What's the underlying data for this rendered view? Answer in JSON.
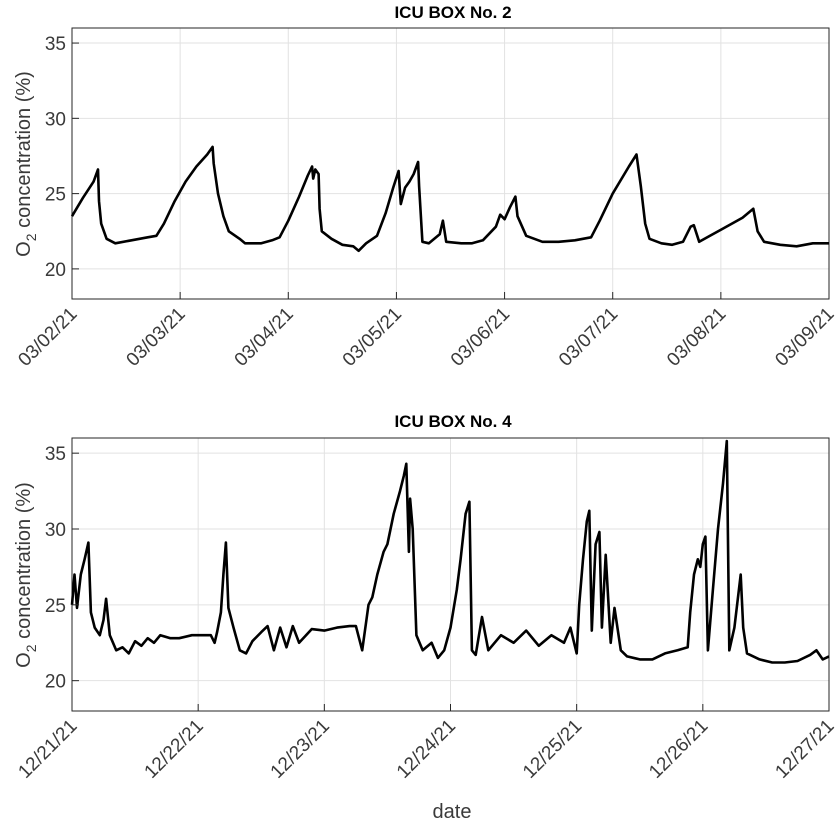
{
  "chart_data": [
    {
      "type": "line",
      "title": "ICU BOX No. 2",
      "ylabel": "O",
      "ylabel_subscript": "2",
      "ylabel_suffix": " concentration (%)",
      "xlabel": "",
      "ylim": [
        18,
        36
      ],
      "yticks": [
        20,
        25,
        30,
        35
      ],
      "xticks": [
        "03/02/21",
        "03/03/21",
        "03/04/21",
        "03/05/21",
        "03/06/21",
        "03/07/21",
        "03/08/21",
        "03/09/21"
      ],
      "x_unit": "days from first tick (03/02/21)",
      "grid": true,
      "series": [
        {
          "color": "#000000",
          "points": [
            [
              0.0,
              23.5
            ],
            [
              0.1,
              24.7
            ],
            [
              0.2,
              25.8
            ],
            [
              0.24,
              26.6
            ],
            [
              0.25,
              24.5
            ],
            [
              0.27,
              23.0
            ],
            [
              0.32,
              22.0
            ],
            [
              0.4,
              21.7
            ],
            [
              0.55,
              21.9
            ],
            [
              0.7,
              22.1
            ],
            [
              0.78,
              22.2
            ],
            [
              0.85,
              23.0
            ],
            [
              0.95,
              24.5
            ],
            [
              1.05,
              25.8
            ],
            [
              1.15,
              26.8
            ],
            [
              1.25,
              27.6
            ],
            [
              1.3,
              28.1
            ],
            [
              1.31,
              27.0
            ],
            [
              1.35,
              25.0
            ],
            [
              1.4,
              23.5
            ],
            [
              1.45,
              22.5
            ],
            [
              1.55,
              22.0
            ],
            [
              1.6,
              21.7
            ],
            [
              1.75,
              21.7
            ],
            [
              1.85,
              21.9
            ],
            [
              1.92,
              22.1
            ],
            [
              2.0,
              23.2
            ],
            [
              2.1,
              24.8
            ],
            [
              2.18,
              26.2
            ],
            [
              2.22,
              26.8
            ],
            [
              2.23,
              26.0
            ],
            [
              2.25,
              26.6
            ],
            [
              2.28,
              26.3
            ],
            [
              2.29,
              24.0
            ],
            [
              2.31,
              22.5
            ],
            [
              2.4,
              22.0
            ],
            [
              2.5,
              21.6
            ],
            [
              2.6,
              21.5
            ],
            [
              2.65,
              21.2
            ],
            [
              2.72,
              21.7
            ],
            [
              2.82,
              22.2
            ],
            [
              2.9,
              23.7
            ],
            [
              2.97,
              25.4
            ],
            [
              3.02,
              26.5
            ],
            [
              3.04,
              24.3
            ],
            [
              3.08,
              25.4
            ],
            [
              3.12,
              25.8
            ],
            [
              3.16,
              26.3
            ],
            [
              3.2,
              27.1
            ],
            [
              3.21,
              25.5
            ],
            [
              3.24,
              21.8
            ],
            [
              3.3,
              21.7
            ],
            [
              3.4,
              22.3
            ],
            [
              3.43,
              23.2
            ],
            [
              3.46,
              21.8
            ],
            [
              3.6,
              21.7
            ],
            [
              3.7,
              21.7
            ],
            [
              3.8,
              21.9
            ],
            [
              3.92,
              22.8
            ],
            [
              3.96,
              23.6
            ],
            [
              4.0,
              23.3
            ],
            [
              4.05,
              24.1
            ],
            [
              4.1,
              24.8
            ],
            [
              4.12,
              23.5
            ],
            [
              4.2,
              22.2
            ],
            [
              4.35,
              21.8
            ],
            [
              4.5,
              21.8
            ],
            [
              4.65,
              21.9
            ],
            [
              4.8,
              22.1
            ],
            [
              4.88,
              23.2
            ],
            [
              5.0,
              25.0
            ],
            [
              5.15,
              26.8
            ],
            [
              5.22,
              27.6
            ],
            [
              5.26,
              25.5
            ],
            [
              5.3,
              23.0
            ],
            [
              5.34,
              22.0
            ],
            [
              5.45,
              21.7
            ],
            [
              5.55,
              21.6
            ],
            [
              5.65,
              21.8
            ],
            [
              5.72,
              22.8
            ],
            [
              5.75,
              22.9
            ],
            [
              5.8,
              21.8
            ],
            [
              5.9,
              22.2
            ],
            [
              6.0,
              22.6
            ],
            [
              6.1,
              23.0
            ],
            [
              6.2,
              23.4
            ],
            [
              6.3,
              24.0
            ],
            [
              6.34,
              22.5
            ],
            [
              6.4,
              21.8
            ],
            [
              6.55,
              21.6
            ],
            [
              6.7,
              21.5
            ],
            [
              6.85,
              21.7
            ],
            [
              7.0,
              21.7
            ]
          ]
        }
      ]
    },
    {
      "type": "line",
      "title": "ICU BOX No. 4",
      "ylabel": "O",
      "ylabel_subscript": "2",
      "ylabel_suffix": " concentration (%)",
      "xlabel": "date",
      "ylim": [
        18,
        36
      ],
      "yticks": [
        20,
        25,
        30,
        35
      ],
      "xticks": [
        "12/21/21",
        "12/22/21",
        "12/23/21",
        "12/24/21",
        "12/25/21",
        "12/26/21",
        "12/27/21"
      ],
      "x_unit": "days from first tick (12/21/21)",
      "grid": true,
      "series": [
        {
          "color": "#000000",
          "points": [
            [
              0.0,
              25.0
            ],
            [
              0.02,
              27.0
            ],
            [
              0.04,
              24.8
            ],
            [
              0.07,
              27.0
            ],
            [
              0.1,
              28.0
            ],
            [
              0.13,
              29.1
            ],
            [
              0.15,
              24.5
            ],
            [
              0.18,
              23.5
            ],
            [
              0.22,
              23.0
            ],
            [
              0.25,
              24.0
            ],
            [
              0.27,
              25.4
            ],
            [
              0.3,
              23.0
            ],
            [
              0.35,
              22.0
            ],
            [
              0.4,
              22.2
            ],
            [
              0.45,
              21.8
            ],
            [
              0.5,
              22.6
            ],
            [
              0.55,
              22.3
            ],
            [
              0.6,
              22.8
            ],
            [
              0.65,
              22.5
            ],
            [
              0.7,
              23.0
            ],
            [
              0.78,
              22.8
            ],
            [
              0.85,
              22.8
            ],
            [
              0.95,
              23.0
            ],
            [
              1.05,
              23.0
            ],
            [
              1.1,
              23.0
            ],
            [
              1.13,
              22.5
            ],
            [
              1.15,
              23.2
            ],
            [
              1.18,
              24.5
            ],
            [
              1.2,
              27.0
            ],
            [
              1.22,
              29.1
            ],
            [
              1.24,
              24.8
            ],
            [
              1.28,
              23.5
            ],
            [
              1.33,
              22.0
            ],
            [
              1.38,
              21.8
            ],
            [
              1.43,
              22.6
            ],
            [
              1.5,
              23.2
            ],
            [
              1.55,
              23.6
            ],
            [
              1.6,
              22.0
            ],
            [
              1.65,
              23.5
            ],
            [
              1.7,
              22.2
            ],
            [
              1.75,
              23.6
            ],
            [
              1.8,
              22.5
            ],
            [
              1.9,
              23.4
            ],
            [
              2.0,
              23.3
            ],
            [
              2.1,
              23.5
            ],
            [
              2.2,
              23.6
            ],
            [
              2.25,
              23.6
            ],
            [
              2.3,
              22.0
            ],
            [
              2.33,
              23.8
            ],
            [
              2.35,
              25.0
            ],
            [
              2.38,
              25.5
            ],
            [
              2.42,
              27.0
            ],
            [
              2.47,
              28.5
            ],
            [
              2.5,
              29.0
            ],
            [
              2.55,
              31.0
            ],
            [
              2.6,
              32.5
            ],
            [
              2.63,
              33.5
            ],
            [
              2.65,
              34.3
            ],
            [
              2.67,
              28.5
            ],
            [
              2.68,
              32.0
            ],
            [
              2.7,
              30.0
            ],
            [
              2.73,
              23.0
            ],
            [
              2.78,
              22.0
            ],
            [
              2.85,
              22.5
            ],
            [
              2.9,
              21.5
            ],
            [
              2.95,
              22.0
            ],
            [
              3.0,
              23.5
            ],
            [
              3.05,
              26.0
            ],
            [
              3.08,
              28.0
            ],
            [
              3.12,
              31.0
            ],
            [
              3.15,
              31.8
            ],
            [
              3.17,
              22.0
            ],
            [
              3.2,
              21.7
            ],
            [
              3.25,
              24.2
            ],
            [
              3.3,
              22.0
            ],
            [
              3.4,
              23.0
            ],
            [
              3.5,
              22.5
            ],
            [
              3.6,
              23.3
            ],
            [
              3.7,
              22.3
            ],
            [
              3.8,
              23.0
            ],
            [
              3.9,
              22.5
            ],
            [
              3.95,
              23.5
            ],
            [
              4.0,
              21.8
            ],
            [
              4.02,
              25.0
            ],
            [
              4.05,
              28.0
            ],
            [
              4.08,
              30.5
            ],
            [
              4.1,
              31.2
            ],
            [
              4.12,
              23.3
            ],
            [
              4.15,
              29.0
            ],
            [
              4.18,
              29.8
            ],
            [
              4.2,
              23.5
            ],
            [
              4.23,
              28.3
            ],
            [
              4.27,
              22.5
            ],
            [
              4.3,
              24.8
            ],
            [
              4.35,
              22.0
            ],
            [
              4.4,
              21.6
            ],
            [
              4.5,
              21.4
            ],
            [
              4.6,
              21.4
            ],
            [
              4.7,
              21.8
            ],
            [
              4.8,
              22.0
            ],
            [
              4.88,
              22.2
            ],
            [
              4.9,
              24.5
            ],
            [
              4.93,
              27.0
            ],
            [
              4.96,
              28.0
            ],
            [
              4.98,
              27.5
            ],
            [
              5.0,
              29.0
            ],
            [
              5.02,
              29.5
            ],
            [
              5.04,
              22.0
            ],
            [
              5.08,
              26.0
            ],
            [
              5.12,
              30.0
            ],
            [
              5.16,
              33.0
            ],
            [
              5.19,
              35.8
            ],
            [
              5.21,
              22.0
            ],
            [
              5.25,
              23.5
            ],
            [
              5.3,
              27.0
            ],
            [
              5.32,
              23.5
            ],
            [
              5.35,
              21.8
            ],
            [
              5.45,
              21.4
            ],
            [
              5.55,
              21.2
            ],
            [
              5.65,
              21.2
            ],
            [
              5.75,
              21.3
            ],
            [
              5.85,
              21.7
            ],
            [
              5.9,
              22.0
            ],
            [
              5.95,
              21.4
            ],
            [
              6.0,
              21.6
            ]
          ]
        }
      ]
    }
  ]
}
